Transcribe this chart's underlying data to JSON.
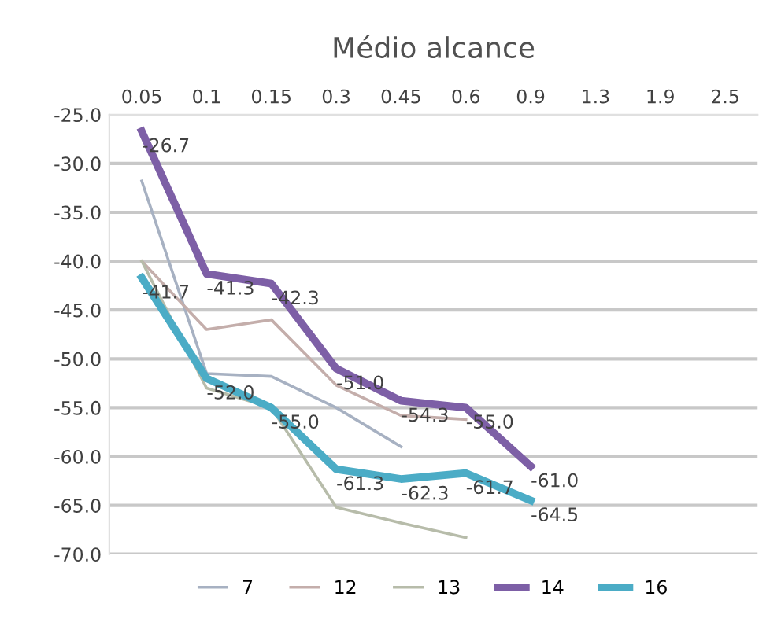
{
  "chart_data": {
    "type": "line",
    "title": "Médio alcance",
    "categories": [
      "0.05",
      "0.1",
      "0.15",
      "0.3",
      "0.45",
      "0.6",
      "0.9",
      "1.3",
      "1.9",
      "2.5"
    ],
    "series": [
      {
        "name": "7",
        "color": "#a7b1c2",
        "values": [
          -31.8,
          -51.5,
          -51.8,
          -55.0,
          -59.0,
          null,
          null,
          null,
          null,
          null
        ]
      },
      {
        "name": "12",
        "color": "#c4aeab",
        "values": [
          -40.0,
          -47.0,
          -46.0,
          -52.7,
          -55.8,
          -56.2,
          null,
          null,
          null,
          null
        ]
      },
      {
        "name": "13",
        "color": "#b7bcaa",
        "values": [
          -40.0,
          -53.0,
          -55.0,
          -65.2,
          -66.8,
          -68.3,
          null,
          null,
          null,
          null
        ]
      },
      {
        "name": "14",
        "color": "#7d5fa6",
        "values": [
          -26.7,
          -41.3,
          -42.3,
          -51.0,
          -54.3,
          -55.0,
          -61.0,
          null,
          null,
          null
        ],
        "value_labels": [
          "-26.7",
          "-41.3",
          "-42.3",
          "-51.0",
          "-54.3",
          "-55.0",
          "-61.0",
          null,
          null,
          null
        ]
      },
      {
        "name": "16",
        "color": "#4bacc6",
        "values": [
          -41.7,
          -52.0,
          -55.0,
          -61.3,
          -62.3,
          -61.7,
          -64.5,
          null,
          null,
          null
        ],
        "value_labels": [
          "-41.7",
          "-52.0",
          "-55.0",
          "-61.3",
          "-62.3",
          "-61.7",
          "-64.5",
          null,
          null,
          null
        ]
      }
    ],
    "ylim": [
      -70,
      -25
    ],
    "yticks": [
      {
        "value": -70,
        "label": "-70.0"
      },
      {
        "value": -65,
        "label": "-65.0"
      },
      {
        "value": -60,
        "label": "-60.0"
      },
      {
        "value": -55,
        "label": "-55.0"
      },
      {
        "value": -50,
        "label": "-50.0"
      },
      {
        "value": -45,
        "label": "-45.0"
      },
      {
        "value": -40,
        "label": "-40.0"
      },
      {
        "value": -35,
        "label": "-35.0"
      },
      {
        "value": -30,
        "label": "-30.0"
      },
      {
        "value": -25,
        "label": "-25.0"
      }
    ],
    "grid": "y",
    "legend": "bottom"
  }
}
